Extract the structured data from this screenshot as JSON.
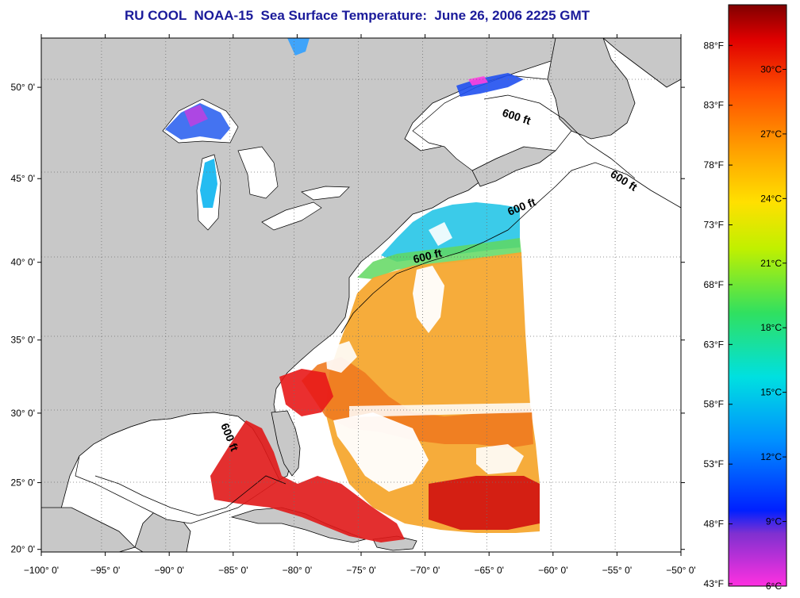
{
  "title": "RU COOL  NOAA-15  Sea Surface Temperature:  June 26, 2006 2225 GMT",
  "lon_ticks": [
    {
      "value": -100,
      "label": "−100° 0'"
    },
    {
      "value": -95,
      "label": "−95° 0'"
    },
    {
      "value": -90,
      "label": "−90° 0'"
    },
    {
      "value": -85,
      "label": "−85° 0'"
    },
    {
      "value": -80,
      "label": "−80° 0'"
    },
    {
      "value": -75,
      "label": "−75° 0'"
    },
    {
      "value": -70,
      "label": "−70° 0'"
    },
    {
      "value": -65,
      "label": "−65° 0'"
    },
    {
      "value": -60,
      "label": "−60° 0'"
    },
    {
      "value": -55,
      "label": "−55° 0'"
    },
    {
      "value": -50,
      "label": "−50° 0'"
    }
  ],
  "lat_ticks": [
    {
      "value": 20,
      "label": "20° 0'"
    },
    {
      "value": 25,
      "label": "25° 0'"
    },
    {
      "value": 30,
      "label": "30° 0'"
    },
    {
      "value": 35,
      "label": "35° 0'"
    },
    {
      "value": 40,
      "label": "40° 0'"
    },
    {
      "value": 45,
      "label": "45° 0'"
    },
    {
      "value": 50,
      "label": "50° 0'"
    }
  ],
  "colorbar": {
    "range_c": [
      6,
      33
    ],
    "celsius_ticks": [
      "30°C",
      "27°C",
      "24°C",
      "21°C",
      "18°C",
      "15°C",
      "12°C",
      "9°C",
      "6°C"
    ],
    "fahrenheit_ticks": [
      "88°F",
      "83°F",
      "78°F",
      "73°F",
      "68°F",
      "63°F",
      "58°F",
      "53°F",
      "48°F",
      "43°F"
    ],
    "stops": [
      "#ff30e0",
      "#8030d0",
      "#0020ff",
      "#0090ff",
      "#00e0e0",
      "#30e060",
      "#c0f000",
      "#ffe000",
      "#ffa000",
      "#ff5000",
      "#e00000",
      "#800000"
    ]
  },
  "contour_labels": [
    "600 ft",
    "600 ft",
    "600 ft",
    "600 ft",
    "600 ft"
  ],
  "colors": {
    "land": "#c8c8c8",
    "cloud_no_data": "#ffffff",
    "title": "#1a1a9a",
    "grid": "#707070"
  }
}
